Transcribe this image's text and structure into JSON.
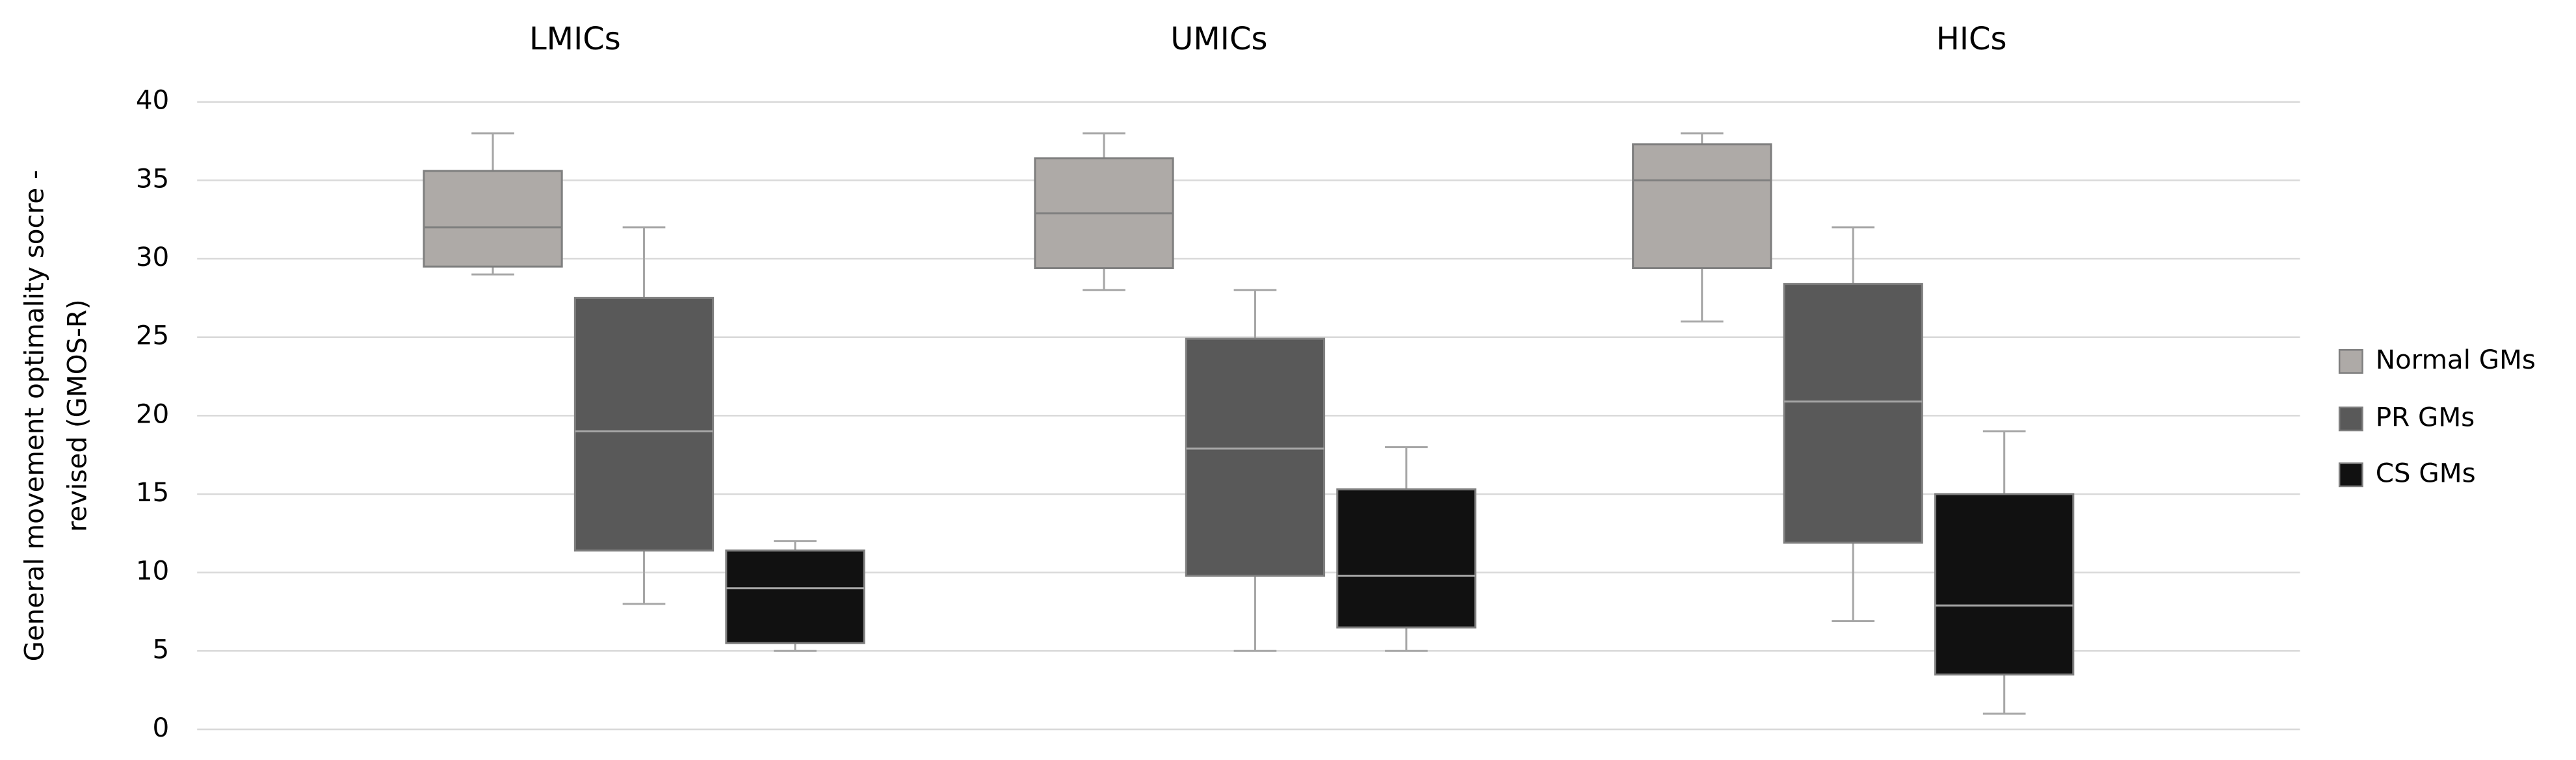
{
  "chart_data": {
    "type": "box",
    "categories": [
      "LMICs",
      "UMICs",
      "HICs"
    ],
    "ylabel": [
      "General movement optimality socre -",
      "revised  (GMOS-R)"
    ],
    "ylim": [
      0,
      40
    ],
    "yticks": [
      0,
      5,
      10,
      15,
      20,
      25,
      30,
      35,
      40
    ],
    "grid": true,
    "legend": "right",
    "series": [
      {
        "name": "Normal GMs",
        "color": "#aeaaa7",
        "values": [
          {
            "min": 29,
            "q1": 29.5,
            "median": 32,
            "q3": 35.6,
            "max": 38
          },
          {
            "min": 28,
            "q1": 29.4,
            "median": 32.9,
            "q3": 36.4,
            "max": 38
          },
          {
            "min": 26,
            "q1": 29.4,
            "median": 35,
            "q3": 37.3,
            "max": 38
          }
        ]
      },
      {
        "name": "PR GMs",
        "color": "#595959",
        "values": [
          {
            "min": 8,
            "q1": 11.4,
            "median": 19,
            "q3": 27.5,
            "max": 32
          },
          {
            "min": 5,
            "q1": 9.8,
            "median": 17.9,
            "q3": 24.9,
            "max": 28
          },
          {
            "min": 6.9,
            "q1": 11.9,
            "median": 20.9,
            "q3": 28.4,
            "max": 32
          }
        ]
      },
      {
        "name": "CS GMs",
        "color": "#111111",
        "values": [
          {
            "min": 5,
            "q1": 5.5,
            "median": 9,
            "q3": 11.4,
            "max": 12
          },
          {
            "min": 5,
            "q1": 6.5,
            "median": 9.8,
            "q3": 15.3,
            "max": 18
          },
          {
            "min": 1,
            "q1": 3.5,
            "median": 7.9,
            "q3": 15,
            "max": 19
          }
        ]
      }
    ]
  }
}
